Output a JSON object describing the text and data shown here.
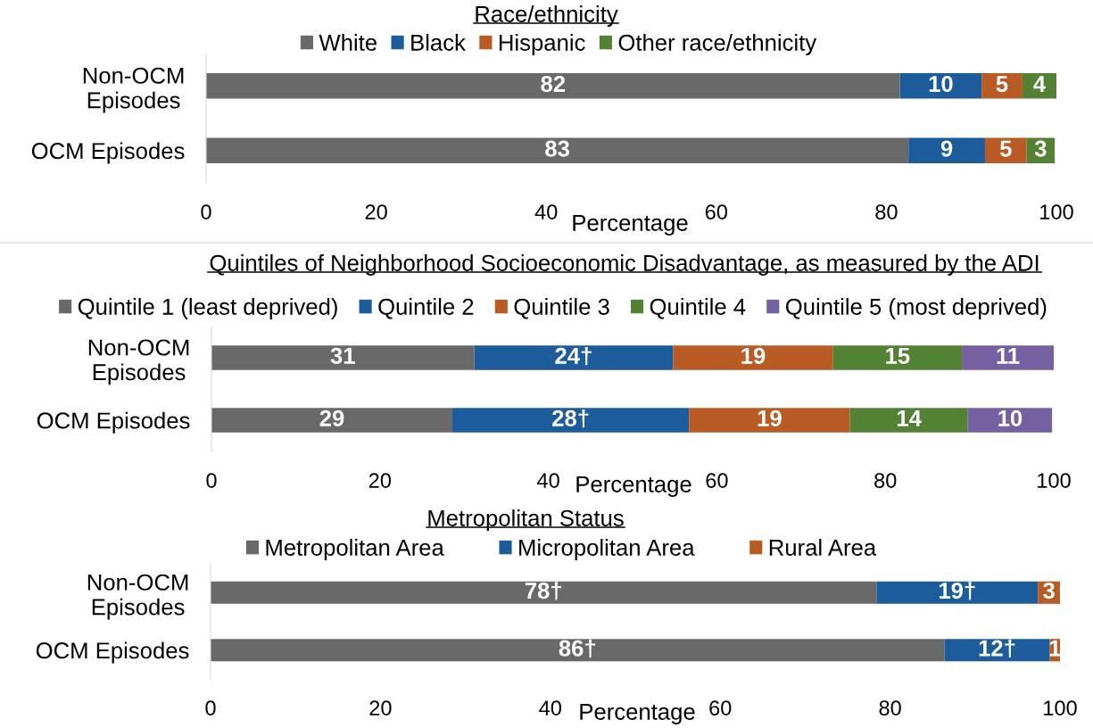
{
  "chart_data": [
    {
      "type": "bar",
      "orientation": "horizontal",
      "stacked": true,
      "title": "Race/ethnicity",
      "xlabel": "Percentage",
      "categories": [
        "Non-OCM Episodes",
        "OCM Episodes"
      ],
      "series": [
        {
          "name": "White",
          "color": "#6a696a",
          "values": [
            81.6,
            82.6
          ],
          "value_labels": [
            "82",
            "83"
          ]
        },
        {
          "name": "Black",
          "color": "#1c5c9b",
          "values": [
            9.6,
            9.0
          ],
          "value_labels": [
            "10",
            "9"
          ]
        },
        {
          "name": "Hispanic",
          "color": "#b95b25",
          "values": [
            4.8,
            4.9
          ],
          "value_labels": [
            "5",
            "5"
          ]
        },
        {
          "name": "Other race/ethnicity",
          "color": "#548235",
          "values": [
            4.0,
            3.3
          ],
          "value_labels": [
            "4",
            "3"
          ]
        }
      ],
      "xlim": [
        0,
        100
      ],
      "xticks": [
        0,
        20,
        40,
        60,
        80,
        100
      ],
      "legend": "top"
    },
    {
      "type": "bar",
      "orientation": "horizontal",
      "stacked": true,
      "title": "Quintiles of Neighborhood Socioeconomic Disadvantage, as measured by the ADI",
      "xlabel": "Percentage",
      "categories": [
        "Non-OCM Episodes",
        "OCM Episodes"
      ],
      "series": [
        {
          "name": "Quintile 1 (least deprived)",
          "color": "#6a696a",
          "values": [
            31.2,
            28.6
          ],
          "value_labels": [
            "31",
            "29"
          ]
        },
        {
          "name": "Quintile 2",
          "color": "#1c5c9b",
          "values": [
            23.6,
            28.1
          ],
          "value_labels": [
            "24†",
            "28†"
          ]
        },
        {
          "name": "Quintile 3",
          "color": "#b95b25",
          "values": [
            19.0,
            19.1
          ],
          "value_labels": [
            "19",
            "19"
          ]
        },
        {
          "name": "Quintile 4",
          "color": "#548235",
          "values": [
            15.3,
            14.0
          ],
          "value_labels": [
            "15",
            "14"
          ]
        },
        {
          "name": "Quintile 5 (most deprived)",
          "color": "#7561a1",
          "values": [
            10.9,
            10.0
          ],
          "value_labels": [
            "11",
            "10"
          ]
        }
      ],
      "xlim": [
        0,
        100
      ],
      "xticks": [
        0,
        20,
        40,
        60,
        80,
        100
      ],
      "legend": "top"
    },
    {
      "type": "bar",
      "orientation": "horizontal",
      "stacked": true,
      "title": "Metropolitan Status",
      "xlabel": "Percentage",
      "categories": [
        "Non-OCM Episodes",
        "OCM Episodes"
      ],
      "series": [
        {
          "name": "Metropolitan Area",
          "color": "#6a696a",
          "values": [
            78.4,
            86.4
          ],
          "value_labels": [
            "78†",
            "86†"
          ]
        },
        {
          "name": "Micropolitan Area",
          "color": "#1c5c9b",
          "values": [
            19.0,
            12.4
          ],
          "value_labels": [
            "19†",
            "12†"
          ]
        },
        {
          "name": "Rural Area",
          "color": "#b95b25",
          "values": [
            2.6,
            1.2
          ],
          "value_labels": [
            "3",
            "1"
          ]
        }
      ],
      "xlim": [
        0,
        100
      ],
      "xticks": [
        0,
        20,
        40,
        60,
        80,
        100
      ],
      "legend": "top"
    }
  ]
}
